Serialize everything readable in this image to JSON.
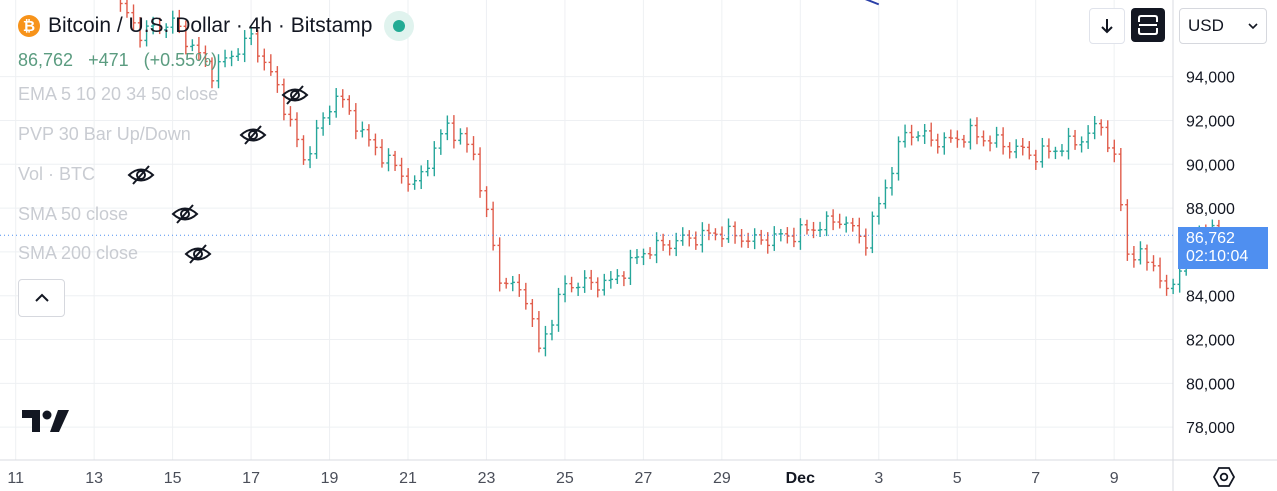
{
  "header": {
    "symbol_title": "Bitcoin / U.S. Dollar · 4h · Bitstamp",
    "coin_glyph": "₿",
    "price": "86,762",
    "change": "+471",
    "change_pct": "(+0.55%)"
  },
  "indicators": [
    {
      "label": "EMA 5 10 20 34 50 close"
    },
    {
      "label": "PVP 30 Bar Up/Down"
    },
    {
      "label": "Vol · BTC"
    },
    {
      "label": "SMA 50 close"
    },
    {
      "label": "SMA 200 close"
    }
  ],
  "toolbar": {
    "currency": "USD"
  },
  "last_price": {
    "value": "86,762",
    "countdown": "02:10:04",
    "numeric": 86762
  },
  "colors": {
    "up": "#26a69a",
    "down": "#e05c4b",
    "grid": "#eef0f3",
    "axis_text": "#787b86",
    "last_price_bg": "#4f8ff0",
    "trend_line": "#2a3fa7"
  },
  "chart_data": {
    "type": "ohlc",
    "interval": "4h",
    "ylim": [
      76500,
      97500
    ],
    "y_ticks": [
      78000,
      80000,
      82000,
      84000,
      86000,
      88000,
      90000,
      92000,
      94000
    ],
    "y_tick_labels": [
      "78,000",
      "80,000",
      "82,000",
      "84,000",
      "86,000",
      "88,000",
      "90,000",
      "92,000",
      "94,000"
    ],
    "x_labels": [
      "11",
      "13",
      "15",
      "17",
      "19",
      "21",
      "23",
      "25",
      "27",
      "29",
      "Dec",
      "3",
      "5",
      "7",
      "9"
    ],
    "x_label_day_index": [
      11,
      13,
      15,
      17,
      19,
      21,
      23,
      25,
      27,
      29,
      31,
      33,
      35,
      37,
      39
    ],
    "x_range_days": [
      10.6,
      40.5
    ],
    "first_bar_day": 13.67,
    "bars_per_day": 6,
    "anchors": [
      [
        0,
        97200
      ],
      [
        3,
        96000
      ],
      [
        8,
        96500
      ],
      [
        14,
        94200
      ],
      [
        20,
        95800
      ],
      [
        24,
        93500
      ],
      [
        28,
        90200
      ],
      [
        33,
        93200
      ],
      [
        38,
        91000
      ],
      [
        45,
        89000
      ],
      [
        50,
        91800
      ],
      [
        54,
        90500
      ],
      [
        58,
        84800
      ],
      [
        62,
        84000
      ],
      [
        64,
        81500
      ],
      [
        68,
        84500
      ],
      [
        75,
        84600
      ],
      [
        80,
        86000
      ],
      [
        85,
        86500
      ],
      [
        92,
        86900
      ],
      [
        97,
        86500
      ],
      [
        103,
        86800
      ],
      [
        110,
        87500
      ],
      [
        114,
        86500
      ],
      [
        120,
        91500
      ],
      [
        126,
        91000
      ],
      [
        130,
        91400
      ],
      [
        135,
        90900
      ],
      [
        140,
        90400
      ],
      [
        146,
        91000
      ],
      [
        150,
        91800
      ],
      [
        152,
        90200
      ],
      [
        154,
        86000
      ],
      [
        158,
        85500
      ],
      [
        160,
        84000
      ],
      [
        163,
        86000
      ],
      [
        165,
        87000
      ],
      [
        168,
        86762
      ]
    ],
    "trend_line": [
      [
        29.9,
        99500
      ],
      [
        33.0,
        97300
      ]
    ]
  }
}
